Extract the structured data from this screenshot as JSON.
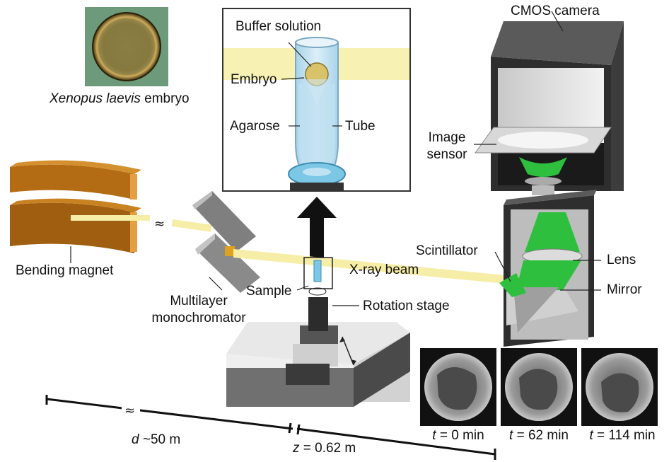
{
  "colors": {
    "magnet": "#b36b14",
    "beam": "#f6eea7",
    "green": "#2fbf3f",
    "camera_body": "#444444",
    "embryo_bg": "#6d9a7a",
    "agarose": "#bfe0f0",
    "stage_gray": "#6e6e6e"
  },
  "embryo_photo": {
    "caption_italic": "Xenopus laevis",
    "caption_rest": " embryo"
  },
  "inset": {
    "buffer_solution": "Buffer solution",
    "embryo": "Embryo",
    "agarose": "Agarose",
    "tube": "Tube"
  },
  "camera": {
    "cmos_camera": "CMOS camera",
    "image_sensor_line1": "Image",
    "image_sensor_line2": "sensor",
    "scintillator": "Scintillator",
    "lens": "Lens",
    "mirror": "Mirror"
  },
  "beamline": {
    "bending_magnet": "Bending magnet",
    "multilayer_line1": "Multilayer",
    "multilayer_line2": "monochromator",
    "xray_beam": "X-ray beam",
    "sample": "Sample",
    "rotation_stage": "Rotation stage"
  },
  "distances": {
    "d_var": "d",
    "d_value": " ~50 m",
    "z_var": "z",
    "z_value": " = 0.62 m"
  },
  "timelapse": [
    {
      "var": "t",
      "value": " = 0 min"
    },
    {
      "var": "t",
      "value": " = 62 min"
    },
    {
      "var": "t",
      "value": " = 114 min"
    }
  ]
}
